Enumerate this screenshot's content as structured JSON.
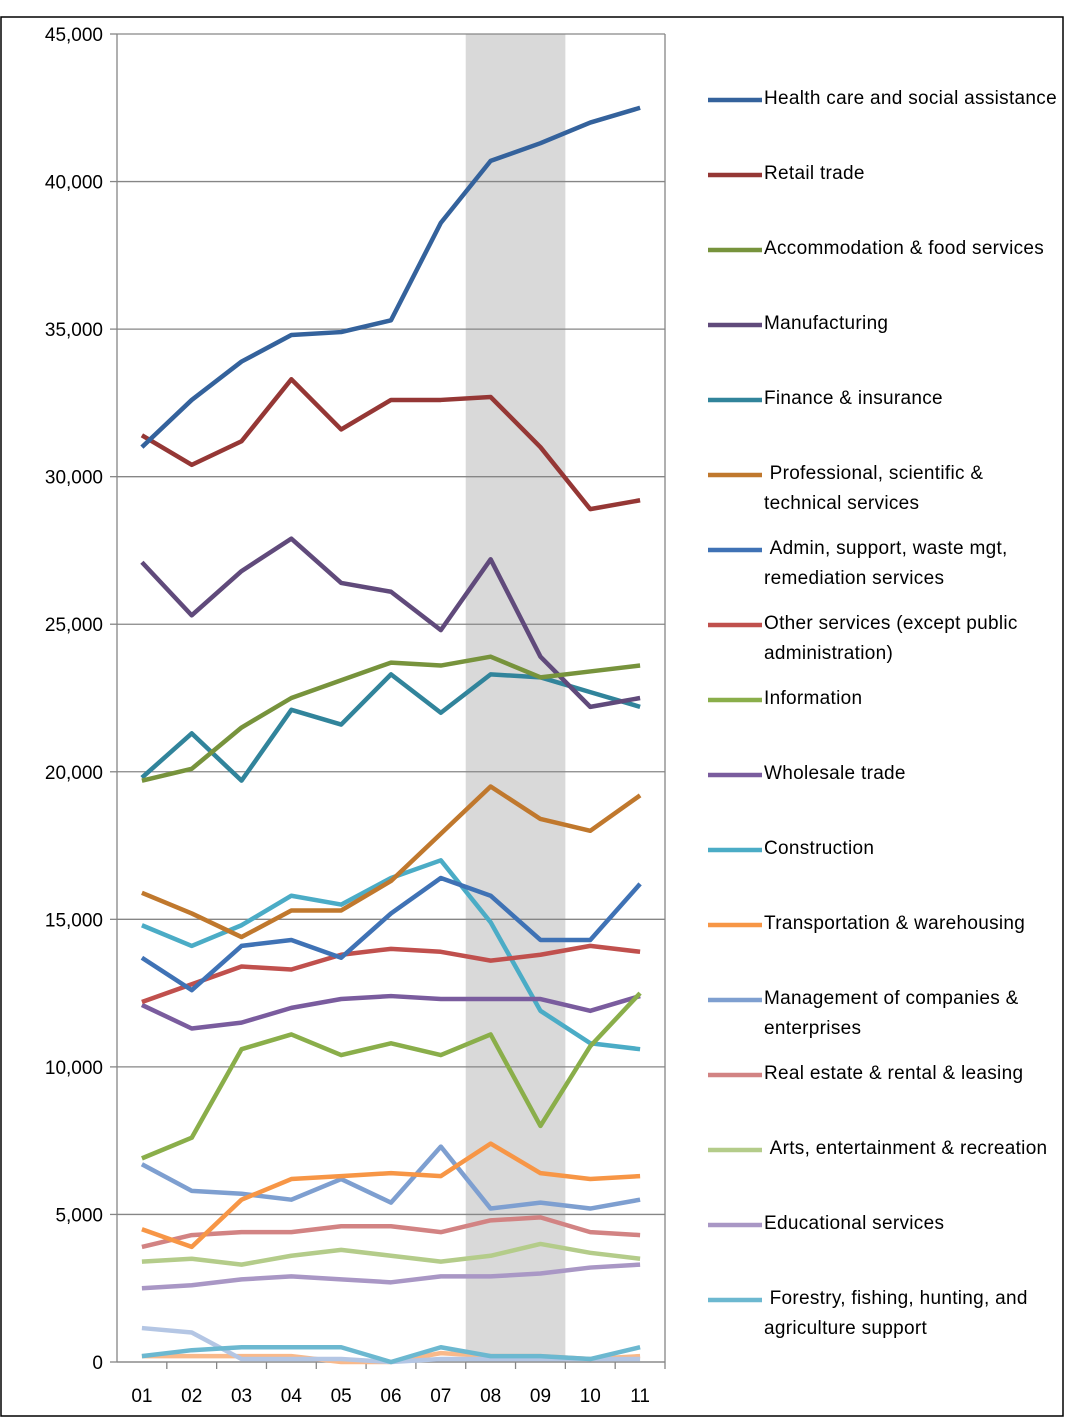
{
  "chart_data": {
    "type": "line",
    "categories": [
      "01",
      "02",
      "03",
      "04",
      "05",
      "06",
      "07",
      "08",
      "09",
      "10",
      "11"
    ],
    "highlight": [
      "08",
      "09"
    ],
    "ylim": [
      0,
      45000
    ],
    "yticks": [
      0,
      {
        "value": 5000,
        "label": "5,000"
      },
      {
        "value": 10000,
        "label": "10,000"
      },
      {
        "value": 15000,
        "label": "15,000"
      },
      {
        "value": 20000,
        "label": "20,000"
      },
      {
        "value": 25000,
        "label": "25,000"
      },
      {
        "value": 30000,
        "label": "30,000"
      },
      {
        "value": 35000,
        "label": "35,000"
      },
      {
        "value": 40000,
        "label": "40,000"
      },
      {
        "value": 45000,
        "label": "45,000"
      }
    ],
    "grid": true,
    "legend": "right",
    "series": [
      {
        "name": "Health care and social assistance",
        "color": "#34629c",
        "values": [
          31000,
          32600,
          33900,
          34800,
          34900,
          35300,
          38600,
          40700,
          41300,
          42000,
          42500
        ]
      },
      {
        "name": "Retail trade",
        "color": "#953735",
        "values": [
          31400,
          30400,
          31200,
          33300,
          31600,
          32600,
          32600,
          32700,
          31000,
          28900,
          29200
        ]
      },
      {
        "name": "Accommodation & food services",
        "color": "#77933c",
        "values": [
          19700,
          20100,
          21500,
          22500,
          23100,
          23700,
          23600,
          23900,
          23200,
          23400,
          23600
        ]
      },
      {
        "name": "Manufacturing",
        "color": "#604a7b",
        "values": [
          27100,
          25300,
          26800,
          27900,
          26400,
          26100,
          24800,
          27200,
          23900,
          22200,
          22500
        ]
      },
      {
        "name": "Finance & insurance",
        "color": "#31849b",
        "values": [
          19800,
          21300,
          19700,
          22100,
          21600,
          23300,
          22000,
          23300,
          23200,
          22700,
          22200
        ]
      },
      {
        "name": " Professional, scientific & technical services",
        "color": "#c0782d",
        "values": [
          15900,
          15200,
          14400,
          15300,
          15300,
          16300,
          17900,
          19500,
          18400,
          18000,
          19200
        ]
      },
      {
        "name": " Admin, support, waste mgt, remediation services",
        "color": "#3f72b5",
        "values": [
          13700,
          12600,
          14100,
          14300,
          13700,
          15200,
          16400,
          15800,
          14300,
          14300,
          16200
        ]
      },
      {
        "name": "Other services (except public administration)",
        "color": "#c0504d",
        "values": [
          12200,
          12800,
          13400,
          13300,
          13800,
          14000,
          13900,
          13600,
          13800,
          14100,
          13900
        ]
      },
      {
        "name": "Information",
        "color": "#8aae4a",
        "values": [
          6900,
          7600,
          10600,
          11100,
          10400,
          10800,
          10400,
          11100,
          8000,
          10700,
          12500
        ]
      },
      {
        "name": "Wholesale trade",
        "color": "#7a5c9e",
        "values": [
          12100,
          11300,
          11500,
          12000,
          12300,
          12400,
          12300,
          12300,
          12300,
          11900,
          12400
        ]
      },
      {
        "name": "Construction",
        "color": "#4bacc6",
        "values": [
          14800,
          14100,
          14800,
          15800,
          15500,
          16400,
          17000,
          14900,
          11900,
          10800,
          10600
        ]
      },
      {
        "name": "Transportation & warehousing",
        "color": "#f79646",
        "values": [
          4500,
          3900,
          5500,
          6200,
          6300,
          6400,
          6300,
          7400,
          6400,
          6200,
          6300
        ]
      },
      {
        "name": "Management of companies & enterprises",
        "color": "#7e9fd0",
        "values": [
          6700,
          5800,
          5700,
          5500,
          6200,
          5400,
          7300,
          5200,
          5400,
          5200,
          5500
        ]
      },
      {
        "name": "Real estate & rental & leasing",
        "color": "#d28383",
        "values": [
          3900,
          4300,
          4400,
          4400,
          4600,
          4600,
          4400,
          4800,
          4900,
          4400,
          4300
        ]
      },
      {
        "name": " Arts, entertainment & recreation",
        "color": "#b4cc8a",
        "values": [
          3400,
          3500,
          3300,
          3600,
          3800,
          3600,
          3400,
          3600,
          4000,
          3700,
          3500
        ]
      },
      {
        "name": "Educational services",
        "color": "#a997c5",
        "values": [
          2500,
          2600,
          2800,
          2900,
          2800,
          2700,
          2900,
          2900,
          3000,
          3200,
          3300
        ]
      },
      {
        "name": " Forestry, fishing, hunting, and agriculture support",
        "color": "#6cb8d0",
        "values": [
          200,
          400,
          500,
          500,
          500,
          0,
          500,
          200,
          200,
          100,
          500
        ]
      },
      {
        "color": "#b4c6e4",
        "values": [
          1150,
          1000,
          100,
          100,
          100,
          0,
          100,
          100,
          100,
          100,
          100
        ]
      },
      {
        "color": "#f9b98a",
        "values": [
          200,
          200,
          200,
          200,
          0,
          0,
          300,
          200,
          200,
          100,
          200
        ]
      }
    ]
  }
}
